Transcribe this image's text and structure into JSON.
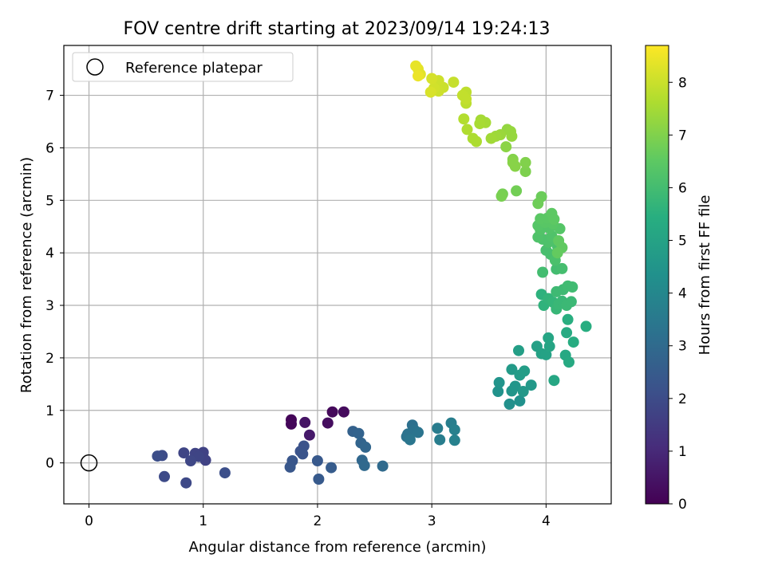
{
  "chart_data": {
    "type": "scatter",
    "title": "FOV centre drift starting at 2023/09/14 19:24:13",
    "xlabel": "Angular distance from reference (arcmin)",
    "ylabel": "Rotation from reference (arcmin)",
    "xlim": [
      -0.22,
      4.57
    ],
    "ylim": [
      -0.78,
      7.95
    ],
    "xticks": [
      0,
      1,
      2,
      3,
      4
    ],
    "yticks": [
      0,
      1,
      2,
      3,
      4,
      5,
      6,
      7
    ],
    "grid": true,
    "legend": {
      "position": "top-left",
      "entries": [
        {
          "label": "Reference platepar",
          "marker": "open-circle"
        }
      ]
    },
    "reference_point": {
      "x": 0,
      "y": 0
    },
    "colorbar": {
      "label": "Hours from first FF file",
      "range": [
        0,
        8.7
      ],
      "ticks": [
        0,
        1,
        2,
        3,
        4,
        5,
        6,
        7,
        8
      ],
      "colormap": "viridis"
    },
    "points": [
      {
        "x": 1.77,
        "y": 0.82,
        "c": 0.1
      },
      {
        "x": 1.77,
        "y": 0.74,
        "c": 0.15
      },
      {
        "x": 2.13,
        "y": 0.97,
        "c": 0.2
      },
      {
        "x": 2.23,
        "y": 0.97,
        "c": 0.25
      },
      {
        "x": 2.09,
        "y": 0.76,
        "c": 0.3
      },
      {
        "x": 1.89,
        "y": 0.77,
        "c": 0.45
      },
      {
        "x": 1.93,
        "y": 0.53,
        "c": 0.6
      },
      {
        "x": 1.02,
        "y": 0.05,
        "c": 1.7
      },
      {
        "x": 1.0,
        "y": 0.2,
        "c": 1.7
      },
      {
        "x": 0.93,
        "y": 0.18,
        "c": 1.75
      },
      {
        "x": 0.96,
        "y": 0.12,
        "c": 1.8
      },
      {
        "x": 0.83,
        "y": 0.19,
        "c": 1.8
      },
      {
        "x": 0.89,
        "y": 0.04,
        "c": 1.85
      },
      {
        "x": 0.85,
        "y": -0.38,
        "c": 1.9
      },
      {
        "x": 0.66,
        "y": -0.26,
        "c": 1.95
      },
      {
        "x": 0.64,
        "y": 0.14,
        "c": 2.0
      },
      {
        "x": 0.6,
        "y": 0.13,
        "c": 2.05
      },
      {
        "x": 1.19,
        "y": -0.19,
        "c": 2.1
      },
      {
        "x": 1.88,
        "y": 0.32,
        "c": 2.2
      },
      {
        "x": 1.85,
        "y": 0.22,
        "c": 2.2
      },
      {
        "x": 1.87,
        "y": 0.17,
        "c": 2.25
      },
      {
        "x": 1.78,
        "y": 0.04,
        "c": 2.3
      },
      {
        "x": 1.76,
        "y": -0.08,
        "c": 2.35
      },
      {
        "x": 2.0,
        "y": 0.04,
        "c": 2.4
      },
      {
        "x": 2.01,
        "y": -0.31,
        "c": 2.45
      },
      {
        "x": 2.12,
        "y": -0.09,
        "c": 2.5
      },
      {
        "x": 2.31,
        "y": 0.6,
        "c": 2.7
      },
      {
        "x": 2.36,
        "y": 0.56,
        "c": 2.75
      },
      {
        "x": 2.38,
        "y": 0.38,
        "c": 2.8
      },
      {
        "x": 2.42,
        "y": 0.3,
        "c": 2.85
      },
      {
        "x": 2.39,
        "y": 0.05,
        "c": 2.9
      },
      {
        "x": 2.41,
        "y": -0.05,
        "c": 2.95
      },
      {
        "x": 2.57,
        "y": -0.06,
        "c": 3.0
      },
      {
        "x": 2.83,
        "y": 0.72,
        "c": 3.2
      },
      {
        "x": 2.85,
        "y": 0.62,
        "c": 3.25
      },
      {
        "x": 2.79,
        "y": 0.55,
        "c": 3.3
      },
      {
        "x": 2.78,
        "y": 0.5,
        "c": 3.3
      },
      {
        "x": 2.88,
        "y": 0.58,
        "c": 3.35
      },
      {
        "x": 2.81,
        "y": 0.44,
        "c": 3.4
      },
      {
        "x": 3.05,
        "y": 0.66,
        "c": 3.6
      },
      {
        "x": 3.07,
        "y": 0.44,
        "c": 3.65
      },
      {
        "x": 3.17,
        "y": 0.76,
        "c": 3.7
      },
      {
        "x": 3.2,
        "y": 0.63,
        "c": 3.75
      },
      {
        "x": 3.2,
        "y": 0.43,
        "c": 3.8
      },
      {
        "x": 3.68,
        "y": 1.12,
        "c": 4.3
      },
      {
        "x": 3.77,
        "y": 1.18,
        "c": 4.35
      },
      {
        "x": 3.58,
        "y": 1.36,
        "c": 4.4
      },
      {
        "x": 3.59,
        "y": 1.53,
        "c": 4.45
      },
      {
        "x": 3.7,
        "y": 1.37,
        "c": 4.5
      },
      {
        "x": 3.73,
        "y": 1.46,
        "c": 4.55
      },
      {
        "x": 3.8,
        "y": 1.36,
        "c": 4.6
      },
      {
        "x": 3.87,
        "y": 1.48,
        "c": 4.65
      },
      {
        "x": 3.7,
        "y": 1.78,
        "c": 4.7
      },
      {
        "x": 3.77,
        "y": 1.67,
        "c": 4.75
      },
      {
        "x": 3.81,
        "y": 1.75,
        "c": 4.8
      },
      {
        "x": 3.76,
        "y": 2.14,
        "c": 4.85
      },
      {
        "x": 3.92,
        "y": 2.22,
        "c": 4.9
      },
      {
        "x": 3.96,
        "y": 2.08,
        "c": 4.95
      },
      {
        "x": 4.0,
        "y": 2.06,
        "c": 5.0
      },
      {
        "x": 4.03,
        "y": 2.22,
        "c": 5.05
      },
      {
        "x": 4.02,
        "y": 2.38,
        "c": 5.1
      },
      {
        "x": 4.07,
        "y": 1.57,
        "c": 5.15
      },
      {
        "x": 4.17,
        "y": 2.05,
        "c": 5.2
      },
      {
        "x": 4.2,
        "y": 1.92,
        "c": 5.25
      },
      {
        "x": 4.18,
        "y": 2.48,
        "c": 5.3
      },
      {
        "x": 4.24,
        "y": 2.3,
        "c": 5.35
      },
      {
        "x": 4.35,
        "y": 2.6,
        "c": 5.4
      },
      {
        "x": 4.19,
        "y": 2.73,
        "c": 5.45
      },
      {
        "x": 3.96,
        "y": 3.21,
        "c": 5.55
      },
      {
        "x": 3.98,
        "y": 3.0,
        "c": 5.6
      },
      {
        "x": 4.02,
        "y": 3.13,
        "c": 5.65
      },
      {
        "x": 4.06,
        "y": 3.06,
        "c": 5.7
      },
      {
        "x": 4.09,
        "y": 2.93,
        "c": 5.75
      },
      {
        "x": 4.11,
        "y": 3.02,
        "c": 5.8
      },
      {
        "x": 4.14,
        "y": 3.08,
        "c": 5.8
      },
      {
        "x": 4.18,
        "y": 3.0,
        "c": 5.85
      },
      {
        "x": 4.22,
        "y": 3.07,
        "c": 5.85
      },
      {
        "x": 4.09,
        "y": 3.26,
        "c": 5.9
      },
      {
        "x": 4.15,
        "y": 3.3,
        "c": 5.9
      },
      {
        "x": 4.19,
        "y": 3.37,
        "c": 5.95
      },
      {
        "x": 4.23,
        "y": 3.35,
        "c": 5.95
      },
      {
        "x": 3.97,
        "y": 3.63,
        "c": 6.0
      },
      {
        "x": 4.09,
        "y": 3.69,
        "c": 6.0
      },
      {
        "x": 4.14,
        "y": 3.7,
        "c": 6.05
      },
      {
        "x": 4.0,
        "y": 4.05,
        "c": 6.1
      },
      {
        "x": 4.04,
        "y": 3.97,
        "c": 6.1
      },
      {
        "x": 4.08,
        "y": 3.86,
        "c": 6.15
      },
      {
        "x": 4.1,
        "y": 4.13,
        "c": 6.15
      },
      {
        "x": 4.02,
        "y": 4.2,
        "c": 6.2
      },
      {
        "x": 3.97,
        "y": 4.26,
        "c": 6.2
      },
      {
        "x": 3.93,
        "y": 4.3,
        "c": 6.25
      },
      {
        "x": 4.05,
        "y": 4.32,
        "c": 6.25
      },
      {
        "x": 3.95,
        "y": 4.44,
        "c": 6.3
      },
      {
        "x": 4.03,
        "y": 4.47,
        "c": 6.3
      },
      {
        "x": 4.12,
        "y": 4.46,
        "c": 6.35
      },
      {
        "x": 3.93,
        "y": 4.52,
        "c": 6.35
      },
      {
        "x": 3.99,
        "y": 4.58,
        "c": 6.4
      },
      {
        "x": 4.06,
        "y": 4.55,
        "c": 6.4
      },
      {
        "x": 3.95,
        "y": 4.65,
        "c": 6.45
      },
      {
        "x": 4.01,
        "y": 4.66,
        "c": 6.45
      },
      {
        "x": 4.05,
        "y": 4.75,
        "c": 6.5
      },
      {
        "x": 4.07,
        "y": 4.64,
        "c": 6.5
      },
      {
        "x": 4.11,
        "y": 4.23,
        "c": 6.55
      },
      {
        "x": 4.14,
        "y": 4.1,
        "c": 6.55
      },
      {
        "x": 4.1,
        "y": 4.0,
        "c": 6.6
      },
      {
        "x": 3.96,
        "y": 5.07,
        "c": 6.7
      },
      {
        "x": 3.93,
        "y": 4.94,
        "c": 6.75
      },
      {
        "x": 3.74,
        "y": 5.18,
        "c": 6.8
      },
      {
        "x": 3.62,
        "y": 5.12,
        "c": 6.85
      },
      {
        "x": 3.61,
        "y": 5.08,
        "c": 6.9
      },
      {
        "x": 3.82,
        "y": 5.55,
        "c": 6.95
      },
      {
        "x": 3.82,
        "y": 5.72,
        "c": 7.0
      },
      {
        "x": 3.71,
        "y": 5.78,
        "c": 7.05
      },
      {
        "x": 3.71,
        "y": 5.72,
        "c": 7.1
      },
      {
        "x": 3.73,
        "y": 5.65,
        "c": 7.1
      },
      {
        "x": 3.65,
        "y": 6.02,
        "c": 7.15
      },
      {
        "x": 3.66,
        "y": 6.35,
        "c": 7.25
      },
      {
        "x": 3.69,
        "y": 6.31,
        "c": 7.3
      },
      {
        "x": 3.7,
        "y": 6.22,
        "c": 7.3
      },
      {
        "x": 3.6,
        "y": 6.25,
        "c": 7.35
      },
      {
        "x": 3.56,
        "y": 6.22,
        "c": 7.4
      },
      {
        "x": 3.52,
        "y": 6.18,
        "c": 7.45
      },
      {
        "x": 3.47,
        "y": 6.48,
        "c": 7.5
      },
      {
        "x": 3.43,
        "y": 6.53,
        "c": 7.5
      },
      {
        "x": 3.42,
        "y": 6.46,
        "c": 7.55
      },
      {
        "x": 3.36,
        "y": 6.18,
        "c": 7.6
      },
      {
        "x": 3.39,
        "y": 6.12,
        "c": 7.6
      },
      {
        "x": 3.31,
        "y": 6.35,
        "c": 7.65
      },
      {
        "x": 3.28,
        "y": 6.55,
        "c": 7.7
      },
      {
        "x": 3.3,
        "y": 6.85,
        "c": 7.8
      },
      {
        "x": 3.3,
        "y": 7.06,
        "c": 7.85
      },
      {
        "x": 3.27,
        "y": 7.0,
        "c": 7.9
      },
      {
        "x": 3.3,
        "y": 6.93,
        "c": 7.9
      },
      {
        "x": 3.19,
        "y": 7.25,
        "c": 7.95
      },
      {
        "x": 3.1,
        "y": 7.15,
        "c": 8.0
      },
      {
        "x": 3.06,
        "y": 7.08,
        "c": 8.05
      },
      {
        "x": 3.06,
        "y": 7.28,
        "c": 8.05
      },
      {
        "x": 3.02,
        "y": 7.14,
        "c": 8.1
      },
      {
        "x": 3.0,
        "y": 7.32,
        "c": 8.15
      },
      {
        "x": 2.99,
        "y": 7.06,
        "c": 8.2
      },
      {
        "x": 2.9,
        "y": 7.4,
        "c": 8.3
      },
      {
        "x": 2.88,
        "y": 7.5,
        "c": 8.35
      },
      {
        "x": 2.86,
        "y": 7.56,
        "c": 8.4
      },
      {
        "x": 2.88,
        "y": 7.37,
        "c": 8.45
      }
    ]
  }
}
